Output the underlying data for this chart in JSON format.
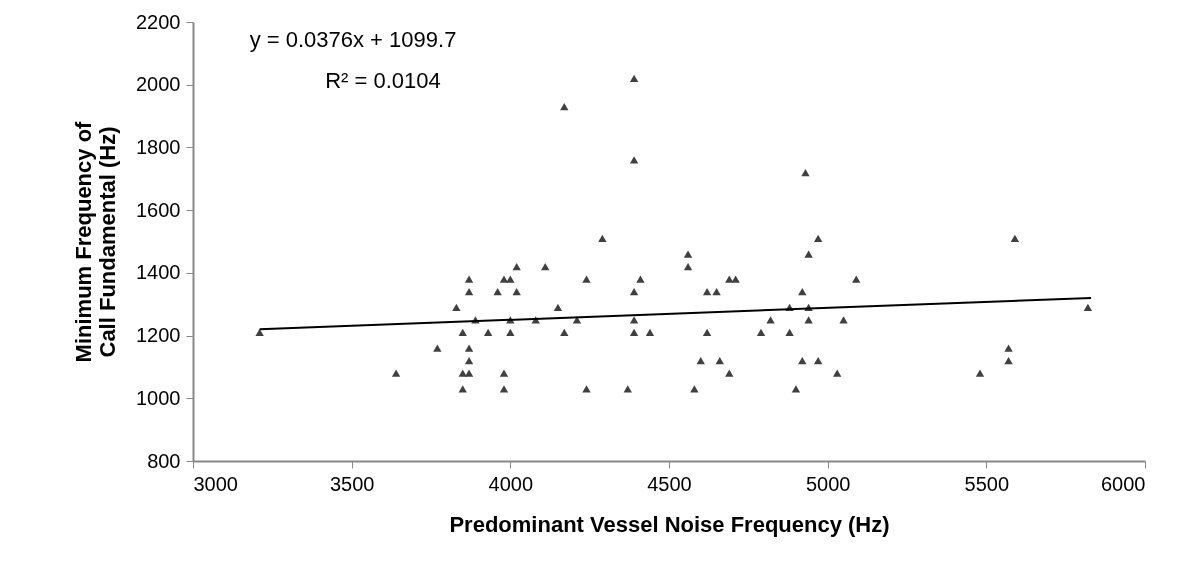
{
  "chart_data": {
    "type": "scatter",
    "xlabel": "Predominant Vessel Noise Frequency (Hz)",
    "ylabel": "Minimum Frequency of Call Fundamental (Hz)",
    "xlim": [
      3000,
      6000
    ],
    "xticks": [
      3000,
      3500,
      4000,
      4500,
      5000,
      5500,
      6000
    ],
    "ylim": [
      800,
      2200
    ],
    "yticks": [
      800,
      1000,
      1200,
      1400,
      1600,
      1800,
      2000,
      2200
    ],
    "grid": false,
    "annotations": [
      "y = 0.0376x + 1099.7",
      "R² = 0.0104"
    ],
    "series": [
      {
        "marker": "triangle",
        "color": "#404040",
        "x": [
          3210,
          3640,
          3770,
          3830,
          3850,
          3850,
          3850,
          3870,
          3870,
          3870,
          3870,
          3870,
          3890,
          3930,
          3960,
          3980,
          3980,
          3980,
          4000,
          4000,
          4000,
          4020,
          4020,
          4080,
          4110,
          4150,
          4170,
          4170,
          4210,
          4240,
          4240,
          4290,
          4370,
          4390,
          4390,
          4390,
          4390,
          4390,
          4410,
          4440,
          4560,
          4560,
          4580,
          4600,
          4620,
          4620,
          4650,
          4660,
          4690,
          4690,
          4710,
          4790,
          4820,
          4880,
          4880,
          4900,
          4920,
          4920,
          4930,
          4940,
          4940,
          4940,
          4970,
          4970,
          5030,
          5050,
          5090,
          5480,
          5570,
          5570,
          5590,
          5820
        ],
        "values": [
          1210,
          1080,
          1160,
          1290,
          1210,
          1080,
          1030,
          1380,
          1340,
          1160,
          1120,
          1080,
          1250,
          1210,
          1340,
          1380,
          1080,
          1030,
          1380,
          1250,
          1210,
          1420,
          1340,
          1250,
          1420,
          1290,
          1930,
          1210,
          1250,
          1380,
          1030,
          1510,
          1030,
          2020,
          1760,
          1340,
          1250,
          1210,
          1380,
          1210,
          1460,
          1420,
          1030,
          1120,
          1340,
          1210,
          1340,
          1120,
          1380,
          1080,
          1380,
          1210,
          1250,
          1290,
          1210,
          1030,
          1340,
          1120,
          1720,
          1460,
          1290,
          1250,
          1510,
          1120,
          1080,
          1250,
          1380,
          1080,
          1160,
          1120,
          1510,
          1290
        ]
      },
      {
        "type": "line",
        "marker": "none",
        "line_style": "solid",
        "color": "#000000",
        "x": [
          3210,
          5830
        ],
        "values": [
          1220,
          1320
        ]
      }
    ]
  }
}
